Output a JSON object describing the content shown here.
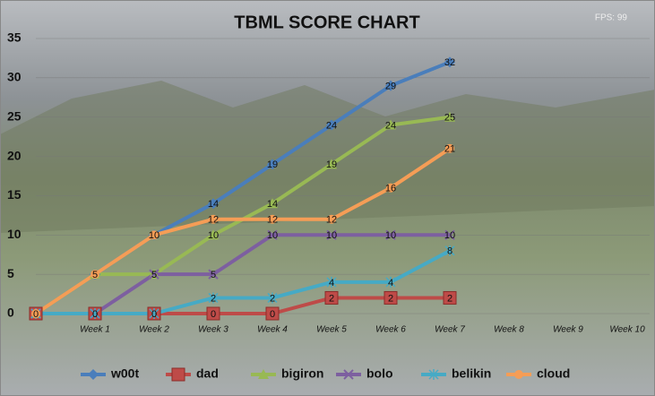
{
  "chart_data": {
    "type": "line",
    "title": "TBML SCORE CHART",
    "overlay_text": "FPS: 99",
    "categories": [
      null,
      "Week 1",
      "Week 2",
      "Week 3",
      "Week 4",
      "Week 5",
      "Week 6",
      "Week 7",
      "Week 8",
      "Week 9",
      "Week 10"
    ],
    "series": [
      {
        "name": "w00t",
        "color": "#4a7ebb",
        "marker": "diamond",
        "values": [
          0,
          5,
          10,
          14,
          19,
          24,
          29,
          32,
          null,
          null,
          null
        ]
      },
      {
        "name": "dad",
        "color": "#be4b48",
        "marker": "square",
        "values": [
          0,
          0,
          0,
          0,
          0,
          2,
          2,
          2,
          null,
          null,
          null
        ]
      },
      {
        "name": "bigiron",
        "color": "#98b954",
        "marker": "triangle",
        "values": [
          0,
          5,
          5,
          10,
          14,
          19,
          24,
          25,
          null,
          null,
          null
        ]
      },
      {
        "name": "bolo",
        "color": "#7d5fa0",
        "marker": "x",
        "values": [
          0,
          0,
          5,
          5,
          10,
          10,
          10,
          10,
          null,
          null,
          null
        ]
      },
      {
        "name": "belikin",
        "color": "#46aac5",
        "marker": "star",
        "values": [
          0,
          0,
          0,
          2,
          2,
          4,
          4,
          8,
          null,
          null,
          null
        ]
      },
      {
        "name": "cloud",
        "color": "#f59d56",
        "marker": "circle",
        "values": [
          0,
          5,
          10,
          12,
          12,
          12,
          16,
          21,
          null,
          null,
          null
        ]
      }
    ],
    "ylim": [
      0,
      35
    ],
    "yticks": [
      0,
      5,
      10,
      15,
      20,
      25,
      30,
      35
    ],
    "grid": true,
    "legend": "bottom"
  }
}
